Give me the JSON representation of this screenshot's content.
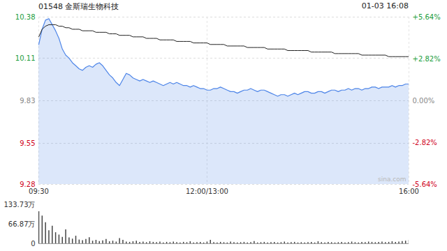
{
  "chart_data": [
    {
      "type": "line",
      "title": "01548 金斯瑞生物科技",
      "subtitle": "01-03 16:08",
      "annotations": [
        "sina.com"
      ],
      "categories": [
        "09:30",
        null,
        null,
        null,
        null,
        null,
        null,
        null,
        null,
        null,
        null,
        null,
        null,
        null,
        null,
        null,
        null,
        null,
        null,
        null,
        null,
        null,
        null,
        null,
        null,
        null,
        null,
        null,
        null,
        null,
        null,
        null,
        null,
        null,
        null,
        null,
        null,
        null,
        null,
        null,
        null,
        null,
        null,
        null,
        null,
        null,
        null,
        null,
        null,
        null,
        "12:00/13:00",
        null,
        null,
        null,
        null,
        null,
        null,
        null,
        null,
        null,
        null,
        null,
        null,
        null,
        null,
        null,
        null,
        null,
        null,
        null,
        null,
        null,
        null,
        null,
        null,
        null,
        null,
        null,
        null,
        null,
        null,
        null,
        null,
        null,
        null,
        null,
        null,
        null,
        null,
        null,
        null,
        null,
        null,
        null,
        null,
        null,
        null,
        null,
        null,
        null,
        null,
        null,
        null,
        null,
        null,
        null,
        null,
        null,
        null,
        null,
        "16:00"
      ],
      "series": [
        {
          "type": "area",
          "color": "#4f86e8",
          "values": [
            10.2,
            10.3,
            10.36,
            10.37,
            10.33,
            10.29,
            10.24,
            10.17,
            10.13,
            10.11,
            10.08,
            10.06,
            10.04,
            10.03,
            10.05,
            10.06,
            10.05,
            10.07,
            10.08,
            10.06,
            10.03,
            10.0,
            9.98,
            9.95,
            9.93,
            9.97,
            10.01,
            10.0,
            9.98,
            9.97,
            9.96,
            9.97,
            9.96,
            9.95,
            9.96,
            9.95,
            9.94,
            9.93,
            9.94,
            9.95,
            9.94,
            9.95,
            9.94,
            9.93,
            9.93,
            9.92,
            9.93,
            9.92,
            9.91,
            9.91,
            9.9,
            9.9,
            9.91,
            9.91,
            9.92,
            9.91,
            9.9,
            9.89,
            9.89,
            9.88,
            9.89,
            9.9,
            9.9,
            9.91,
            9.9,
            9.89,
            9.9,
            9.9,
            9.89,
            9.88,
            9.87,
            9.86,
            9.87,
            9.87,
            9.86,
            9.87,
            9.88,
            9.87,
            9.88,
            9.89,
            9.89,
            9.88,
            9.88,
            9.89,
            9.89,
            9.88,
            9.89,
            9.9,
            9.9,
            9.89,
            9.9,
            9.9,
            9.91,
            9.9,
            9.91,
            9.91,
            9.9,
            9.91,
            9.91,
            9.92,
            9.92,
            9.91,
            9.92,
            9.92,
            9.92,
            9.93,
            9.92,
            9.93,
            9.93,
            9.94,
            9.94
          ]
        },
        {
          "type": "line",
          "color": "#222222",
          "values": [
            10.25,
            10.3,
            10.32,
            10.33,
            10.33,
            10.33,
            10.32,
            10.32,
            10.31,
            10.31,
            10.3,
            10.3,
            10.3,
            10.29,
            10.29,
            10.29,
            10.29,
            10.28,
            10.28,
            10.28,
            10.28,
            10.27,
            10.27,
            10.27,
            10.26,
            10.26,
            10.26,
            10.26,
            10.25,
            10.25,
            10.25,
            10.25,
            10.24,
            10.24,
            10.24,
            10.24,
            10.23,
            10.23,
            10.23,
            10.23,
            10.23,
            10.22,
            10.22,
            10.22,
            10.22,
            10.22,
            10.21,
            10.21,
            10.21,
            10.21,
            10.21,
            10.2,
            10.2,
            10.2,
            10.2,
            10.2,
            10.19,
            10.19,
            10.19,
            10.19,
            10.19,
            10.19,
            10.18,
            10.18,
            10.18,
            10.18,
            10.18,
            10.18,
            10.17,
            10.17,
            10.17,
            10.17,
            10.17,
            10.17,
            10.16,
            10.16,
            10.16,
            10.16,
            10.16,
            10.16,
            10.16,
            10.15,
            10.15,
            10.15,
            10.15,
            10.15,
            10.15,
            10.15,
            10.14,
            10.14,
            10.14,
            10.14,
            10.14,
            10.14,
            10.14,
            10.14,
            10.13,
            10.13,
            10.13,
            10.13,
            10.13,
            10.13,
            10.13,
            10.13,
            10.12,
            10.12,
            10.12,
            10.12,
            10.12,
            10.12,
            10.12
          ]
        }
      ],
      "ylim": [
        9.28,
        10.38
      ],
      "yticks": [
        10.38,
        10.11,
        9.83,
        9.55,
        9.28
      ],
      "y2lim": [
        -5.64,
        5.64
      ],
      "y2ticks": [
        {
          "value": 5.64,
          "label": "+5.64%"
        },
        {
          "value": 2.82,
          "label": "+2.82%"
        },
        {
          "value": 0,
          "label": "0.00%"
        },
        {
          "value": -2.82,
          "label": "-2.82%"
        },
        {
          "value": -5.64,
          "label": "-5.64%"
        }
      ],
      "grid": true
    },
    {
      "type": "bar",
      "categories": [
        "09:30",
        null,
        null,
        null,
        null,
        null,
        null,
        null,
        null,
        null,
        null,
        null,
        null,
        null,
        null,
        null,
        null,
        null,
        null,
        null,
        null,
        null,
        null,
        null,
        null,
        null,
        null,
        null,
        null,
        null,
        null,
        null,
        null,
        null,
        null,
        null,
        null,
        null,
        null,
        null,
        null,
        null,
        null,
        null,
        null,
        null,
        null,
        null,
        null,
        null,
        "12:00/13:00",
        null,
        null,
        null,
        null,
        null,
        null,
        null,
        null,
        null,
        null,
        null,
        null,
        null,
        null,
        null,
        null,
        null,
        null,
        null,
        null,
        null,
        null,
        null,
        null,
        null,
        null,
        null,
        null,
        null,
        null,
        null,
        null,
        null,
        null,
        null,
        null,
        null,
        null,
        null,
        null,
        null,
        null,
        null,
        null,
        null,
        null,
        null,
        null,
        null,
        null,
        null,
        null,
        null,
        null,
        null,
        null,
        null,
        null,
        null,
        "16:00"
      ],
      "values": [
        110,
        95,
        72,
        45,
        60,
        38,
        30,
        22,
        48,
        20,
        16,
        26,
        13,
        11,
        15,
        21,
        9,
        12,
        8,
        10,
        15,
        7,
        9,
        6,
        18,
        12,
        6,
        5,
        7,
        9,
        5,
        6,
        4,
        7,
        5,
        4,
        6,
        3,
        5,
        4,
        6,
        4,
        3,
        5,
        4,
        7,
        3,
        4,
        5,
        3,
        6,
        12,
        4,
        3,
        5,
        4,
        3,
        6,
        4,
        3,
        4,
        5,
        3,
        4,
        8,
        3,
        4,
        5,
        3,
        4,
        5,
        3,
        4,
        6,
        3,
        4,
        5,
        3,
        4,
        3,
        4,
        5,
        3,
        7,
        4,
        3,
        5,
        4,
        3,
        4,
        5,
        3,
        4,
        6,
        4,
        3,
        5,
        4,
        6,
        5,
        4,
        5,
        6,
        4,
        5,
        7,
        5,
        6,
        8,
        9,
        12
      ],
      "color": "#444444",
      "ylim": [
        0,
        133.73
      ],
      "yticks": [
        {
          "value": 133.73,
          "label": "133.73万"
        },
        {
          "value": 66.87,
          "label": "66.87万"
        },
        0
      ],
      "tick_labels": "y"
    }
  ]
}
